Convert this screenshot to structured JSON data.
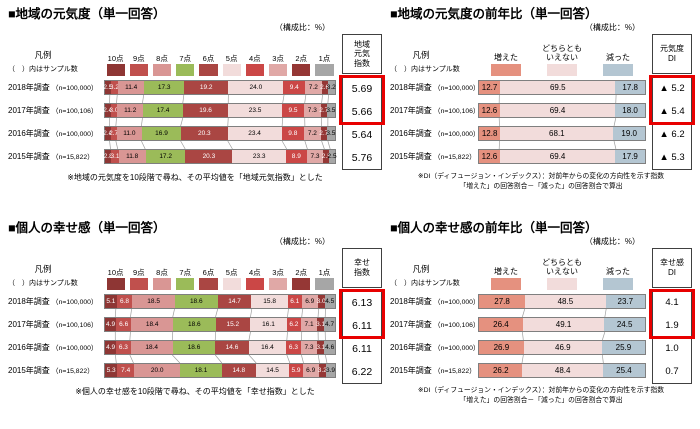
{
  "page": {
    "background": "#ffffff",
    "highlight_color": "#e80000"
  },
  "chart_data": [
    {
      "type": "bar",
      "stacked": true,
      "orientation": "horizontal",
      "title": "■地域の元気度（単一回答）",
      "unit_label": "（構成比：%）",
      "legend_caption": "凡例",
      "sample_caption": "（　）内はサンプル数",
      "legend_position": "top",
      "series": [
        {
          "label": "10点",
          "color": "#8e3634"
        },
        {
          "label": "9点",
          "color": "#c0504d"
        },
        {
          "label": "8点",
          "color": "#d99694"
        },
        {
          "label": "7点",
          "color": "#9bbb59"
        },
        {
          "label": "6点",
          "color": "#aa4643"
        },
        {
          "label": "5点",
          "color": "#f2dcdb"
        },
        {
          "label": "4点",
          "color": "#cb4746"
        },
        {
          "label": "3点",
          "color": "#e0a8a6"
        },
        {
          "label": "2点",
          "color": "#953735"
        },
        {
          "label": "1点",
          "color": "#a6a6a6"
        }
      ],
      "index_header": "地域元気指数",
      "index_header_lines": [
        "地域",
        "元気",
        "指数"
      ],
      "rows": [
        {
          "category": "2018年調査",
          "sample": "（n=100,000）",
          "values": [
            2.5,
            3.2,
            11.4,
            17.3,
            19.2,
            24.0,
            9.4,
            7.2,
            2.6,
            3.2
          ],
          "index": "5.69"
        },
        {
          "category": "2017年調査",
          "sample": "（n=100,106）",
          "values": [
            2.4,
            3.0,
            11.2,
            17.4,
            19.6,
            23.5,
            9.5,
            7.3,
            2.7,
            3.5
          ],
          "index": "5.66"
        },
        {
          "category": "2016年調査",
          "sample": "（n=100,000）",
          "values": [
            2.4,
            2.7,
            11.0,
            16.9,
            20.3,
            23.4,
            9.8,
            7.2,
            2.7,
            3.5
          ],
          "index": "5.64"
        },
        {
          "category": "2015年調査",
          "sample": "（n=15,822）",
          "values": [
            2.8,
            3.1,
            11.8,
            17.2,
            20.3,
            23.3,
            8.9,
            7.3,
            2.5,
            2.5
          ],
          "index": "5.76"
        }
      ],
      "highlight_rows": [
        0,
        1
      ],
      "xlim": [
        0,
        100
      ],
      "note": "※地域の元気度を10段階で尋ね、その平均値を「地域元気指数」とした"
    },
    {
      "type": "bar",
      "stacked": true,
      "orientation": "horizontal",
      "title": "■地域の元気度の前年比（単一回答）",
      "unit_label": "（構成比：%）",
      "legend_caption": "凡例",
      "sample_caption": "（　）内はサンプル数",
      "legend_position": "top",
      "series": [
        {
          "label": "増えた",
          "color": "#e5917f"
        },
        {
          "label": "どちらとも\nいえない",
          "color": "#f2dcdb"
        },
        {
          "label": "減った",
          "color": "#b4c6d2"
        }
      ],
      "index_header": "元気度DI",
      "index_header_lines": [
        "元気度",
        "DI"
      ],
      "rows": [
        {
          "category": "2018年調査",
          "sample": "（n=100,000）",
          "values": [
            12.7,
            69.5,
            17.8
          ],
          "index": "▲ 5.2"
        },
        {
          "category": "2017年調査",
          "sample": "（n=100,106）",
          "values": [
            12.6,
            69.4,
            18.0
          ],
          "index": "▲ 5.4"
        },
        {
          "category": "2016年調査",
          "sample": "（n=100,000）",
          "values": [
            12.8,
            68.1,
            19.0
          ],
          "index": "▲ 6.2"
        },
        {
          "category": "2015年調査",
          "sample": "（n=15,822）",
          "values": [
            12.6,
            69.4,
            17.9
          ],
          "index": "▲ 5.3"
        }
      ],
      "highlight_rows": [
        0,
        1
      ],
      "xlim": [
        0,
        100
      ],
      "note": "※DI（ディフュージョン・インデックス）：対前年からの変化の方向性を示す指数\n「増えた」の回答割合－「減った」の回答割合で算出"
    },
    {
      "type": "bar",
      "stacked": true,
      "orientation": "horizontal",
      "title": "■個人の幸せ感（単一回答）",
      "unit_label": "（構成比：%）",
      "legend_caption": "凡例",
      "sample_caption": "（　）内はサンプル数",
      "legend_position": "top",
      "series": [
        {
          "label": "10点",
          "color": "#8e3634"
        },
        {
          "label": "9点",
          "color": "#c0504d"
        },
        {
          "label": "8点",
          "color": "#d99694"
        },
        {
          "label": "7点",
          "color": "#9bbb59"
        },
        {
          "label": "6点",
          "color": "#aa4643"
        },
        {
          "label": "5点",
          "color": "#f2dcdb"
        },
        {
          "label": "4点",
          "color": "#cb4746"
        },
        {
          "label": "3点",
          "color": "#e0a8a6"
        },
        {
          "label": "2点",
          "color": "#953735"
        },
        {
          "label": "1点",
          "color": "#a6a6a6"
        }
      ],
      "index_header": "幸せ指数",
      "index_header_lines": [
        "幸せ",
        "指数"
      ],
      "rows": [
        {
          "category": "2018年調査",
          "sample": "（n=100,000）",
          "values": [
            5.1,
            6.8,
            18.5,
            18.6,
            14.7,
            15.8,
            6.1,
            6.9,
            3.0,
            4.5
          ],
          "index": "6.13"
        },
        {
          "category": "2017年調査",
          "sample": "（n=100,106）",
          "values": [
            4.9,
            6.6,
            18.4,
            18.6,
            15.2,
            16.1,
            6.2,
            7.1,
            3.1,
            4.7
          ],
          "index": "6.11"
        },
        {
          "category": "2016年調査",
          "sample": "（n=100,000）",
          "values": [
            4.9,
            6.3,
            18.4,
            18.6,
            14.6,
            16.4,
            6.3,
            7.3,
            3.1,
            4.6
          ],
          "index": "6.11"
        },
        {
          "category": "2015年調査",
          "sample": "（n=15,822）",
          "values": [
            5.3,
            7.4,
            20.0,
            18.1,
            14.8,
            14.5,
            5.9,
            6.9,
            3.2,
            3.9
          ],
          "index": "6.22"
        }
      ],
      "highlight_rows": [
        0,
        1
      ],
      "xlim": [
        0,
        100
      ],
      "note": "※個人の幸せ感を10段階で尋ね、その平均値を「幸せ指数」とした"
    },
    {
      "type": "bar",
      "stacked": true,
      "orientation": "horizontal",
      "title": "■個人の幸せ感の前年比（単一回答）",
      "unit_label": "（構成比：%）",
      "legend_caption": "凡例",
      "sample_caption": "（　）内はサンプル数",
      "legend_position": "top",
      "series": [
        {
          "label": "増えた",
          "color": "#e5917f"
        },
        {
          "label": "どちらとも\nいえない",
          "color": "#f2dcdb"
        },
        {
          "label": "減った",
          "color": "#b4c6d2"
        }
      ],
      "index_header": "幸せ感DI",
      "index_header_lines": [
        "幸せ感",
        "DI"
      ],
      "rows": [
        {
          "category": "2018年調査",
          "sample": "（n=100,000）",
          "values": [
            27.8,
            48.5,
            23.7
          ],
          "index": "4.1"
        },
        {
          "category": "2017年調査",
          "sample": "（n=100,106）",
          "values": [
            26.4,
            49.1,
            24.5
          ],
          "index": "1.9"
        },
        {
          "category": "2016年調査",
          "sample": "（n=100,000）",
          "values": [
            26.9,
            46.9,
            25.9
          ],
          "index": "1.0"
        },
        {
          "category": "2015年調査",
          "sample": "（n=15,822）",
          "values": [
            26.2,
            48.4,
            25.4
          ],
          "index": "0.7"
        }
      ],
      "highlight_rows": [
        0,
        1
      ],
      "xlim": [
        0,
        100
      ],
      "note": "※DI（ディフュージョン・インデックス）：対前年からの変化の方向性を示す指数\n「増えた」の回答割合－「減った」の回答割合で算出"
    }
  ]
}
